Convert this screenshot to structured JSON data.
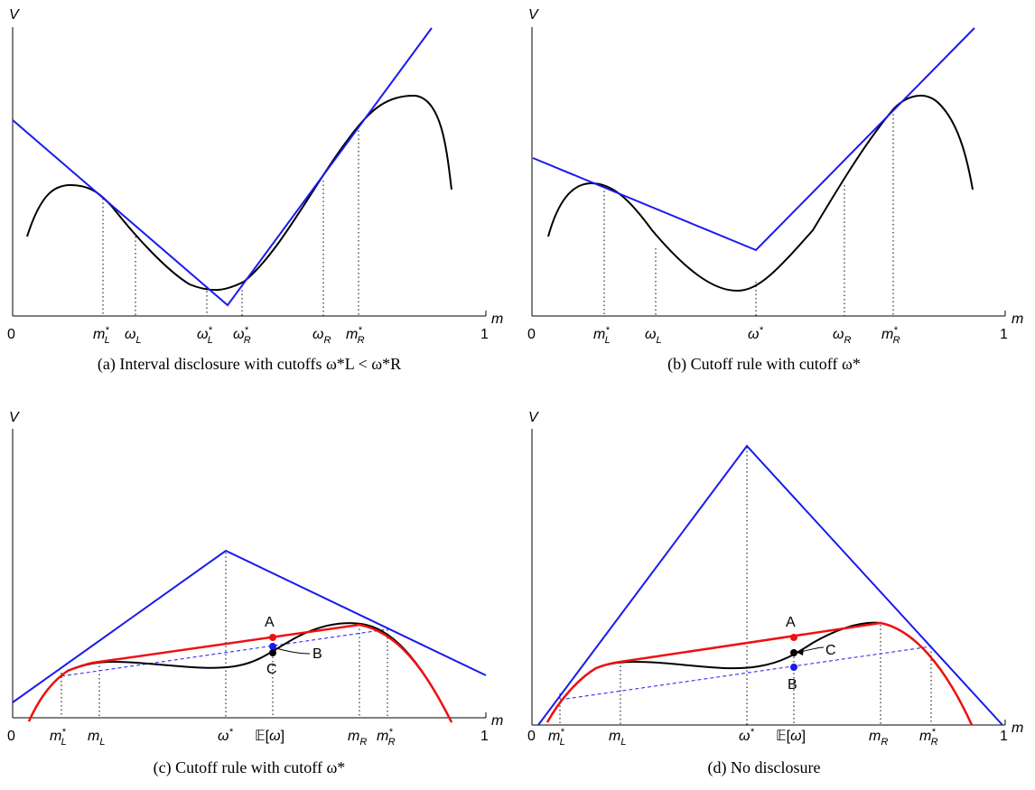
{
  "panels": [
    {
      "id": "a",
      "caption": "(a) Interval disclosure with cutoffs ω*L < ω*R",
      "y_label": "V",
      "x_label": "m",
      "x_ticks": [
        "0",
        "m*L",
        "ωL",
        "ω*L",
        "ω*R",
        "ωR",
        "m*R",
        "1"
      ],
      "curves": [
        "black-curve",
        "blue-kinked-line"
      ],
      "points": []
    },
    {
      "id": "b",
      "caption": "(b) Cutoff rule with cutoff ω*",
      "y_label": "V",
      "x_label": "m",
      "x_ticks": [
        "0",
        "m*L",
        "ωL",
        "ω*",
        "ωR",
        "m*R",
        "1"
      ],
      "curves": [
        "black-curve",
        "blue-kinked-line"
      ],
      "points": []
    },
    {
      "id": "c",
      "caption": "(c) Cutoff rule with cutoff ω*",
      "y_label": "V",
      "x_label": "m",
      "x_ticks": [
        "0",
        "m*L",
        "mL",
        "ω*",
        "E[ω]",
        "mR",
        "m*R",
        "1"
      ],
      "curves": [
        "black-curve",
        "red-concave-envelope",
        "blue-tent-line",
        "blue-dashed-chord"
      ],
      "points": [
        {
          "label": "A",
          "color": "#ee1111"
        },
        {
          "label": "B",
          "color": "#1a1aee"
        },
        {
          "label": "C",
          "color": "#000000"
        }
      ]
    },
    {
      "id": "d",
      "caption": "(d) No disclosure",
      "y_label": "V",
      "x_label": "m",
      "x_ticks": [
        "0",
        "m*L",
        "mL",
        "ω*",
        "E[ω]",
        "mR",
        "m*R",
        "1"
      ],
      "curves": [
        "black-curve",
        "red-concave-envelope",
        "blue-tent-line",
        "blue-dashed-chord"
      ],
      "points": [
        {
          "label": "A",
          "color": "#ee1111"
        },
        {
          "label": "B",
          "color": "#1a1aee"
        },
        {
          "label": "C",
          "color": "#000000"
        }
      ]
    }
  ],
  "colors": {
    "curve": "#000000",
    "blue": "#1a1aee",
    "red": "#ee1111",
    "axis": "#000000"
  }
}
